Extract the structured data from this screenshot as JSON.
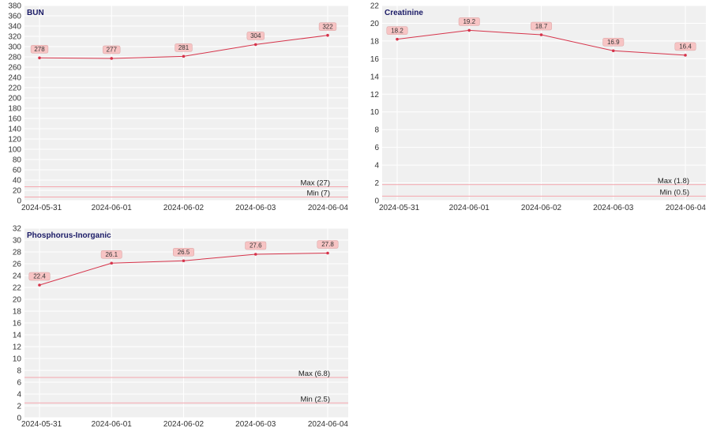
{
  "colors": {
    "plot_background": "#f0f0f0",
    "gridline": "#ffffff",
    "series_line": "#d6334a",
    "reference_line": "#f4a6ad",
    "data_label_fill": "#f7c4c4",
    "title_color": "#1a1a66"
  },
  "chart_data": [
    {
      "type": "line",
      "title": "BUN",
      "x": [
        "2024-05-31",
        "2024-06-01",
        "2024-06-02",
        "2024-06-03",
        "2024-06-04"
      ],
      "series": [
        {
          "values": [
            278,
            277,
            281,
            304,
            322
          ]
        }
      ],
      "data_labels": [
        "278",
        "277",
        "281",
        "304",
        "322"
      ],
      "ylim": [
        0,
        380
      ],
      "yticks": [
        0,
        20,
        40,
        60,
        80,
        100,
        120,
        140,
        160,
        180,
        200,
        220,
        240,
        260,
        280,
        300,
        320,
        340,
        360,
        380
      ],
      "reference_lines": [
        {
          "label": "Max (27)",
          "value": 27
        },
        {
          "label": "Min (7)",
          "value": 7
        }
      ],
      "grid": true
    },
    {
      "type": "line",
      "title": "Creatinine",
      "x": [
        "2024-05-31",
        "2024-06-01",
        "2024-06-02",
        "2024-06-03",
        "2024-06-04"
      ],
      "series": [
        {
          "values": [
            18.2,
            19.2,
            18.7,
            16.9,
            16.4
          ]
        }
      ],
      "data_labels": [
        "18.2",
        "19.2",
        "18.7",
        "16.9",
        "16.4"
      ],
      "ylim": [
        0,
        22
      ],
      "yticks": [
        0,
        2,
        4,
        6,
        8,
        10,
        12,
        14,
        16,
        18,
        20,
        22
      ],
      "reference_lines": [
        {
          "label": "Max (1.8)",
          "value": 1.8
        },
        {
          "label": "Min (0.5)",
          "value": 0.5
        }
      ],
      "grid": true
    },
    {
      "type": "line",
      "title": "Phosphorus-Inorganic",
      "x": [
        "2024-05-31",
        "2024-06-01",
        "2024-06-02",
        "2024-06-03",
        "2024-06-04"
      ],
      "series": [
        {
          "values": [
            22.4,
            26.1,
            26.5,
            27.6,
            27.8
          ]
        }
      ],
      "data_labels": [
        "22.4",
        "26.1",
        "26.5",
        "27.6",
        "27.8"
      ],
      "ylim": [
        0,
        32
      ],
      "yticks": [
        0,
        2,
        4,
        6,
        8,
        10,
        12,
        14,
        16,
        18,
        20,
        22,
        24,
        26,
        28,
        30,
        32
      ],
      "reference_lines": [
        {
          "label": "Max (6.8)",
          "value": 6.8
        },
        {
          "label": "Min (2.5)",
          "value": 2.5
        }
      ],
      "grid": true
    }
  ]
}
